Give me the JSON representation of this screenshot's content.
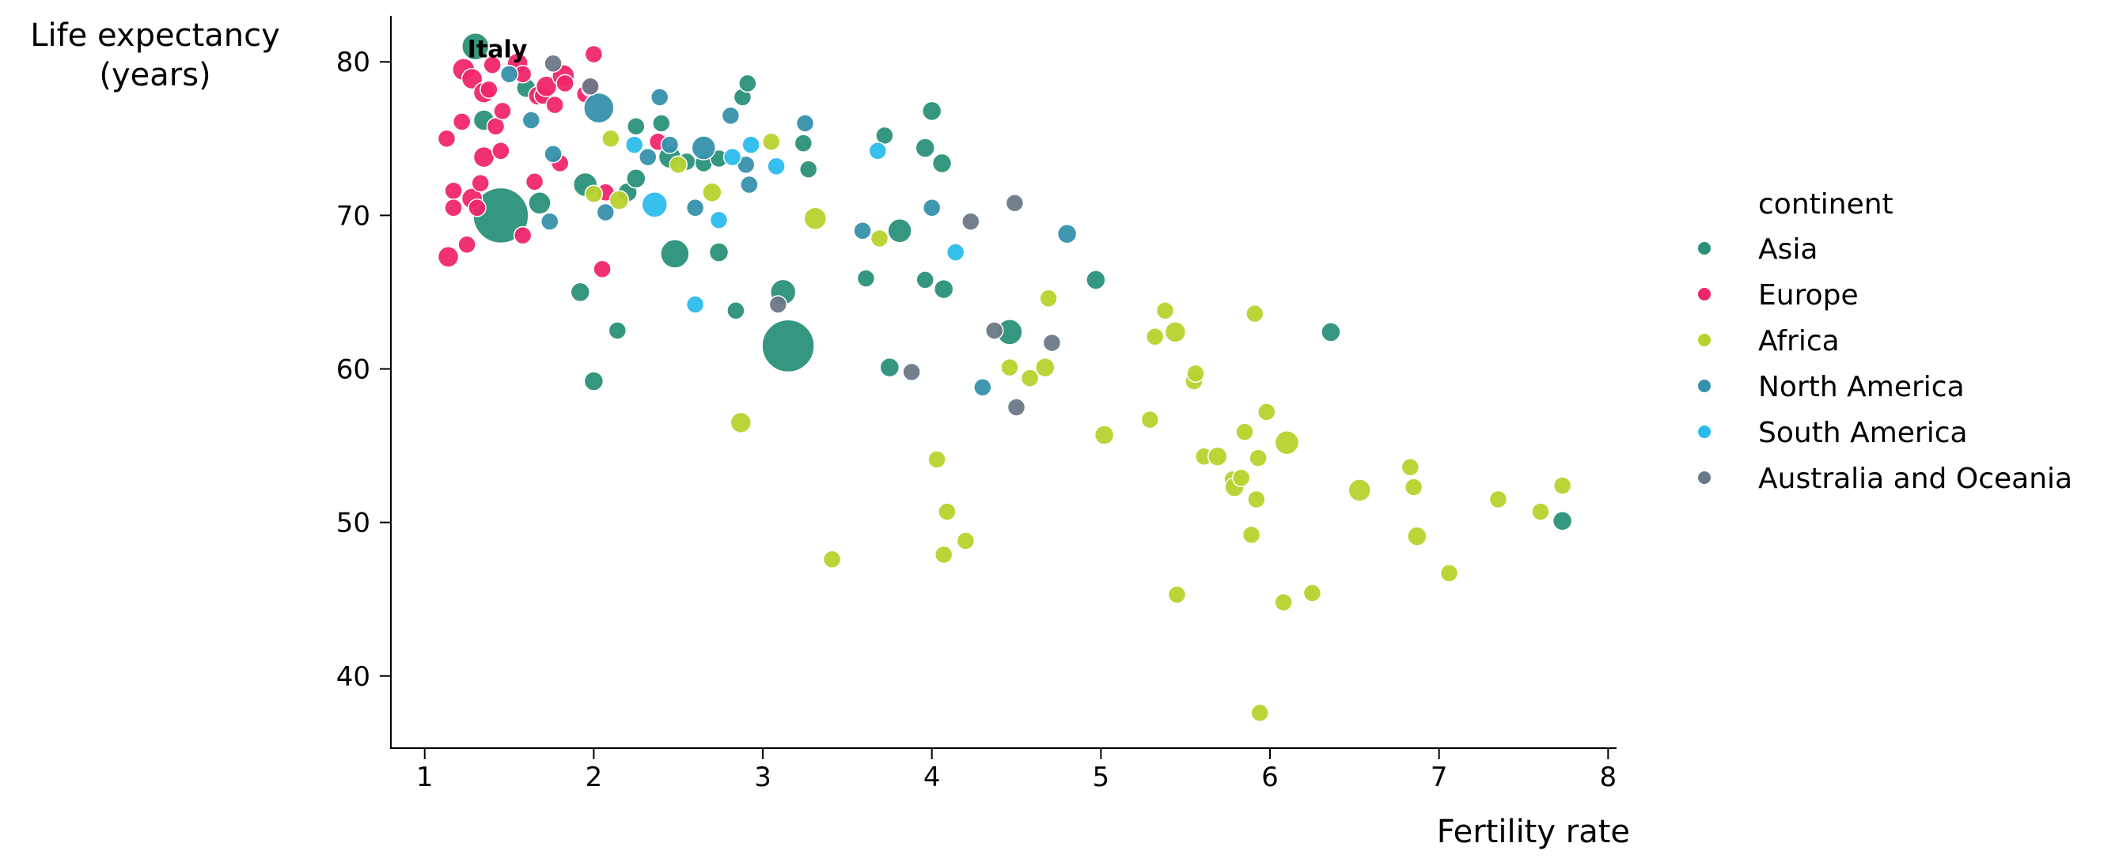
{
  "chart_data": {
    "type": "scatter",
    "title": "",
    "xlabel": "Fertility rate",
    "ylabel_lines": [
      "Life expectancy",
      "(years)"
    ],
    "xlim": [
      0.8,
      8.05
    ],
    "ylim": [
      35.3,
      83.0
    ],
    "xticks": [
      1,
      2,
      3,
      4,
      5,
      6,
      7,
      8
    ],
    "yticks": [
      40,
      50,
      60,
      70,
      80
    ],
    "grid": false,
    "legend": {
      "title": "continent",
      "placement": "right"
    },
    "annotation": {
      "text": "Italy",
      "x": 1.43,
      "y": 80.3
    },
    "series": [
      {
        "name": "Asia",
        "color": "#2a9178",
        "points": [
          [
            1.3,
            81,
            34
          ],
          [
            1.35,
            76.2,
            26
          ],
          [
            1.45,
            70,
            70
          ],
          [
            1.6,
            78.3,
            24
          ],
          [
            1.68,
            70.8,
            28
          ],
          [
            1.95,
            72,
            30
          ],
          [
            1.92,
            65,
            24
          ],
          [
            2.0,
            59.2,
            24
          ],
          [
            2.14,
            62.5,
            22
          ],
          [
            2.2,
            71.5,
            24
          ],
          [
            2.25,
            72.4,
            24
          ],
          [
            2.25,
            75.8,
            22
          ],
          [
            2.4,
            76,
            22
          ],
          [
            2.45,
            73.8,
            28
          ],
          [
            2.48,
            67.5,
            36
          ],
          [
            2.55,
            73.5,
            22
          ],
          [
            2.65,
            73.4,
            22
          ],
          [
            2.74,
            73.7,
            22
          ],
          [
            2.74,
            67.6,
            24
          ],
          [
            2.84,
            63.8,
            22
          ],
          [
            2.88,
            77.7,
            22
          ],
          [
            2.91,
            78.6,
            22
          ],
          [
            3.12,
            65,
            32
          ],
          [
            3.15,
            61.5,
            66
          ],
          [
            3.24,
            74.7,
            22
          ],
          [
            3.27,
            73,
            22
          ],
          [
            3.61,
            65.9,
            22
          ],
          [
            3.72,
            75.2,
            22
          ],
          [
            3.75,
            60.1,
            24
          ],
          [
            3.81,
            69,
            30
          ],
          [
            3.96,
            74.4,
            24
          ],
          [
            3.96,
            65.8,
            22
          ],
          [
            4.0,
            76.8,
            24
          ],
          [
            4.06,
            73.4,
            24
          ],
          [
            4.07,
            65.2,
            24
          ],
          [
            4.46,
            62.4,
            32
          ],
          [
            4.97,
            65.8,
            24
          ],
          [
            6.36,
            62.4,
            24
          ],
          [
            7.73,
            50.1,
            24
          ]
        ]
      },
      {
        "name": "Europe",
        "color": "#f0266b",
        "points": [
          [
            1.13,
            75.0,
            22
          ],
          [
            1.17,
            71.6,
            22
          ],
          [
            1.17,
            70.5,
            22
          ],
          [
            1.14,
            67.3,
            26
          ],
          [
            1.22,
            76.1,
            22
          ],
          [
            1.23,
            79.5,
            28
          ],
          [
            1.25,
            68.1,
            22
          ],
          [
            1.28,
            78.9,
            26
          ],
          [
            1.28,
            71.1,
            26
          ],
          [
            1.31,
            70.5,
            22
          ],
          [
            1.33,
            72.1,
            22
          ],
          [
            1.35,
            73.8,
            26
          ],
          [
            1.35,
            78,
            26
          ],
          [
            1.38,
            78.2,
            22
          ],
          [
            1.4,
            79.8,
            22
          ],
          [
            1.42,
            75.8,
            22
          ],
          [
            1.45,
            74.2,
            22
          ],
          [
            1.46,
            76.8,
            22
          ],
          [
            1.55,
            79.9,
            26
          ],
          [
            1.58,
            79.2,
            22
          ],
          [
            1.58,
            68.7,
            22
          ],
          [
            1.65,
            72.2,
            22
          ],
          [
            1.67,
            77.8,
            24
          ],
          [
            1.7,
            77.8,
            22
          ],
          [
            1.72,
            78.4,
            26
          ],
          [
            1.77,
            77.2,
            22
          ],
          [
            1.8,
            73.4,
            22
          ],
          [
            1.82,
            79.1,
            28
          ],
          [
            1.83,
            78.6,
            22
          ],
          [
            1.95,
            77.9,
            22
          ],
          [
            1.98,
            78.3,
            22
          ],
          [
            2.0,
            80.5,
            22
          ],
          [
            2.05,
            66.5,
            22
          ],
          [
            2.07,
            71.5,
            22
          ],
          [
            2.38,
            74.8,
            22
          ]
        ]
      },
      {
        "name": "Africa",
        "color": "#b9d22e",
        "points": [
          [
            2.0,
            71.4,
            22
          ],
          [
            2.1,
            75,
            22
          ],
          [
            2.15,
            71,
            24
          ],
          [
            2.5,
            73.3,
            22
          ],
          [
            2.7,
            71.5,
            24
          ],
          [
            2.87,
            56.5,
            26
          ],
          [
            3.05,
            74.8,
            22
          ],
          [
            3.31,
            69.8,
            28
          ],
          [
            3.41,
            47.6,
            22
          ],
          [
            3.69,
            68.5,
            22
          ],
          [
            4.03,
            54.1,
            22
          ],
          [
            4.07,
            47.9,
            22
          ],
          [
            4.09,
            50.7,
            22
          ],
          [
            4.2,
            48.8,
            22
          ],
          [
            4.46,
            60.1,
            22
          ],
          [
            4.58,
            59.4,
            22
          ],
          [
            4.67,
            60.1,
            24
          ],
          [
            4.69,
            64.6,
            22
          ],
          [
            5.02,
            55.7,
            24
          ],
          [
            5.29,
            56.7,
            22
          ],
          [
            5.32,
            62.1,
            22
          ],
          [
            5.38,
            63.8,
            22
          ],
          [
            5.44,
            62.4,
            26
          ],
          [
            5.45,
            45.3,
            22
          ],
          [
            5.55,
            59.2,
            22
          ],
          [
            5.56,
            59.7,
            22
          ],
          [
            5.61,
            54.3,
            22
          ],
          [
            5.69,
            54.3,
            24
          ],
          [
            5.78,
            52.8,
            22
          ],
          [
            5.79,
            52.3,
            24
          ],
          [
            5.83,
            52.9,
            22
          ],
          [
            5.85,
            55.9,
            22
          ],
          [
            5.89,
            49.2,
            22
          ],
          [
            5.91,
            63.6,
            22
          ],
          [
            5.92,
            51.5,
            22
          ],
          [
            5.93,
            54.2,
            22
          ],
          [
            5.94,
            37.6,
            22
          ],
          [
            5.98,
            57.2,
            22
          ],
          [
            6.08,
            44.8,
            22
          ],
          [
            6.1,
            55.2,
            30
          ],
          [
            6.25,
            45.4,
            22
          ],
          [
            6.53,
            52.1,
            28
          ],
          [
            6.83,
            53.6,
            22
          ],
          [
            6.85,
            52.3,
            22
          ],
          [
            6.87,
            49.1,
            24
          ],
          [
            7.06,
            46.7,
            22
          ],
          [
            7.35,
            51.5,
            22
          ],
          [
            7.6,
            50.7,
            22
          ],
          [
            7.73,
            52.4,
            22
          ]
        ]
      },
      {
        "name": "North America",
        "color": "#3691ab",
        "points": [
          [
            1.5,
            79.2,
            22
          ],
          [
            1.63,
            76.2,
            22
          ],
          [
            1.74,
            69.6,
            22
          ],
          [
            1.76,
            74.0,
            22
          ],
          [
            2.03,
            77.0,
            38
          ],
          [
            2.07,
            70.2,
            22
          ],
          [
            2.32,
            73.8,
            22
          ],
          [
            2.39,
            77.7,
            22
          ],
          [
            2.45,
            74.6,
            22
          ],
          [
            2.6,
            70.5,
            22
          ],
          [
            2.65,
            74.4,
            30
          ],
          [
            2.81,
            76.5,
            22
          ],
          [
            2.9,
            73.3,
            22
          ],
          [
            2.92,
            72.0,
            22
          ],
          [
            3.25,
            76.0,
            22
          ],
          [
            3.59,
            69.0,
            22
          ],
          [
            4.0,
            70.5,
            22
          ],
          [
            4.3,
            58.8,
            22
          ],
          [
            4.8,
            68.8,
            24
          ]
        ]
      },
      {
        "name": "South America",
        "color": "#2cbcec",
        "points": [
          [
            2.24,
            74.6,
            22
          ],
          [
            2.36,
            70.7,
            32
          ],
          [
            2.6,
            64.2,
            22
          ],
          [
            2.74,
            69.7,
            22
          ],
          [
            2.82,
            73.8,
            22
          ],
          [
            2.93,
            74.6,
            22
          ],
          [
            3.08,
            73.2,
            22
          ],
          [
            3.68,
            74.2,
            22
          ],
          [
            4.14,
            67.6,
            22
          ]
        ]
      },
      {
        "name": "Australia and Oceania",
        "color": "#6b7887",
        "points": [
          [
            1.76,
            79.9,
            22
          ],
          [
            1.98,
            78.4,
            22
          ],
          [
            3.09,
            64.2,
            22
          ],
          [
            3.88,
            59.8,
            22
          ],
          [
            4.23,
            69.6,
            22
          ],
          [
            4.37,
            62.5,
            22
          ],
          [
            4.49,
            70.8,
            22
          ],
          [
            4.5,
            57.5,
            22
          ],
          [
            4.71,
            61.7,
            22
          ]
        ]
      }
    ]
  }
}
